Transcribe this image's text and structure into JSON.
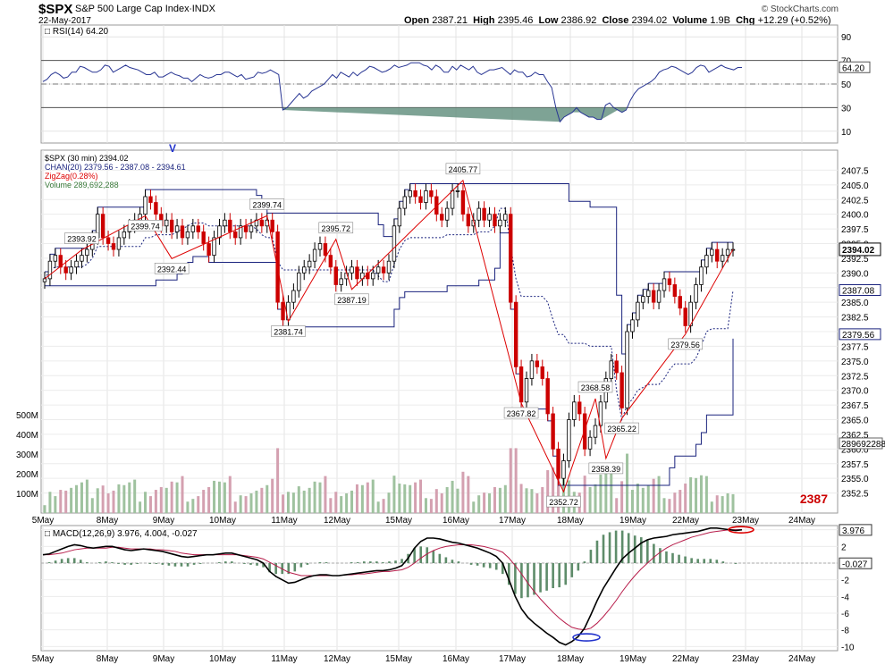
{
  "header": {
    "symbol": "$SPX",
    "name": "S&P 500 Large Cap Index",
    "exchange": "INDX",
    "date": "22-May-2017",
    "credit": "© StockCharts.com",
    "ohlc": [
      {
        "label": "Open",
        "value": "2387.21"
      },
      {
        "label": "High",
        "value": "2395.46"
      },
      {
        "label": "Low",
        "value": "2386.92"
      },
      {
        "label": "Close",
        "value": "2394.02"
      },
      {
        "label": "Volume",
        "value": "1.9B"
      },
      {
        "label": "Chg",
        "value": "+12.29 (+0.52%)"
      }
    ]
  },
  "colors": {
    "up": "#000000",
    "down": "#cc0000",
    "channel": "#1a237e",
    "zigzag": "#dd0000",
    "rsi": "#283593",
    "macd": "#000000",
    "signal": "#b71c4a",
    "hist": "#5e8c6a",
    "vol_up": "#9fc29f",
    "vol_down": "#d4a0b0",
    "marker": "#2233cc"
  },
  "chart_data": [
    {
      "panel": "rsi",
      "type": "line",
      "label": "RSI(14) 64.20",
      "ylim": [
        0,
        100
      ],
      "ticks": [
        10,
        30,
        50,
        70,
        90
      ],
      "overbought": 70,
      "oversold": 30,
      "midline": 50,
      "last_label": "64.20",
      "values": [
        52,
        54,
        58,
        60,
        58,
        55,
        56,
        60,
        60,
        65,
        64,
        62,
        60,
        60,
        62,
        66,
        65,
        60,
        62,
        64,
        66,
        64,
        63,
        62,
        60,
        58,
        58,
        60,
        56,
        56,
        58,
        60,
        58,
        57,
        55,
        55,
        52,
        55,
        58,
        56,
        55,
        56,
        58,
        58,
        60,
        60,
        58,
        56,
        58,
        54,
        55,
        56,
        60,
        59,
        60,
        62,
        60,
        58,
        28,
        30,
        34,
        38,
        42,
        38,
        40,
        44,
        46,
        48,
        50,
        54,
        58,
        55,
        60,
        58,
        56,
        60,
        57,
        60,
        62,
        65,
        64,
        62,
        60,
        61,
        63,
        66,
        64,
        65,
        66,
        68,
        68,
        68,
        66,
        65,
        62,
        66,
        64,
        60,
        60,
        65,
        62,
        66,
        64,
        62,
        65,
        60,
        58,
        60,
        62,
        62,
        63,
        64,
        61,
        58,
        62,
        60,
        60,
        56,
        57,
        60,
        58,
        58,
        52,
        47,
        30,
        18,
        22,
        24,
        26,
        30,
        26,
        24,
        22,
        22,
        20,
        20,
        32,
        34,
        30,
        28,
        26,
        28,
        36,
        42,
        46,
        48,
        50,
        52,
        55,
        60,
        62,
        63,
        65,
        64,
        62,
        60,
        58,
        60,
        64,
        66,
        65,
        60,
        62,
        64,
        66,
        64,
        63,
        62,
        64,
        64
      ]
    },
    {
      "panel": "price",
      "type": "candlestick",
      "title": "$SPX (30 min) 2394.02",
      "legend": [
        "$SPX (30 min) 2394.02",
        "CHAN(20) 2379.56 - 2387.08 - 2394.61",
        "ZigZag(0.28%)",
        "Volume 289,692,288"
      ],
      "ylim": [
        2350,
        2410
      ],
      "ticks": [
        2352.5,
        2355,
        2357.5,
        2360,
        2362.5,
        2365,
        2367.5,
        2370,
        2372.5,
        2375,
        2377.5,
        2380,
        2382.5,
        2385,
        2387.5,
        2390,
        2392.5,
        2395,
        2397.5,
        2400,
        2402.5,
        2405,
        2407.5
      ],
      "last_price": "2394.02",
      "channel_labels": [
        "2387.08",
        "2379.56"
      ],
      "overlay_text": "2387",
      "closes": [
        2389,
        2392,
        2393,
        2391,
        2390,
        2391,
        2392,
        2393,
        2394,
        2396,
        2400,
        2396,
        2395,
        2394,
        2396,
        2397,
        2398,
        2399,
        2400,
        2403,
        2402,
        2400,
        2398,
        2399,
        2397,
        2398,
        2396,
        2397,
        2398,
        2397,
        2395,
        2393,
        2396,
        2398,
        2399,
        2397,
        2396,
        2398,
        2397,
        2398,
        2399,
        2398,
        2399,
        2397,
        2385,
        2382,
        2385,
        2387,
        2390,
        2391,
        2392,
        2394,
        2395,
        2393,
        2391,
        2388,
        2389,
        2390,
        2391,
        2389,
        2390,
        2389,
        2390,
        2391,
        2390,
        2392,
        2398,
        2401,
        2403,
        2404,
        2403,
        2402,
        2404,
        2403,
        2400,
        2399,
        2401,
        2404,
        2404,
        2400,
        2398,
        2399,
        2401,
        2399,
        2400,
        2398,
        2399,
        2400,
        2385,
        2374,
        2368,
        2372,
        2375,
        2374,
        2372,
        2366,
        2360,
        2355,
        2358,
        2365,
        2368,
        2366,
        2360,
        2362,
        2364,
        2368,
        2372,
        2375,
        2373,
        2367,
        2380,
        2382,
        2385,
        2386,
        2387,
        2385,
        2387,
        2389,
        2388,
        2386,
        2384,
        2381,
        2385,
        2388,
        2391,
        2393,
        2394,
        2392,
        2393,
        2394,
        2394
      ],
      "x_labels": [
        "5May",
        "8May",
        "9May",
        "10May",
        "11May",
        "12May",
        "15May",
        "16May",
        "17May",
        "18May",
        "19May",
        "22May",
        "23May",
        "24May"
      ],
      "annotations": [
        {
          "text": "2393.92",
          "index": 7
        },
        {
          "text": "2399.74",
          "index": 19
        },
        {
          "text": "2392.44",
          "index": 24
        },
        {
          "text": "2399.74",
          "index": 42
        },
        {
          "text": "2381.74",
          "index": 46
        },
        {
          "text": "2395.72",
          "index": 55
        },
        {
          "text": "2387.19",
          "index": 58
        },
        {
          "text": "2405.77",
          "index": 79
        },
        {
          "text": "2367.82",
          "index": 90
        },
        {
          "text": "2368.58",
          "index": 104
        },
        {
          "text": "2358.39",
          "index": 106
        },
        {
          "text": "2352.72",
          "index": 98
        },
        {
          "text": "2365.22",
          "index": 109
        },
        {
          "text": "2379.56",
          "index": 121
        }
      ],
      "volume_ticks": [
        "100M",
        "200M",
        "300M",
        "400M",
        "500M"
      ],
      "volume_last": "289692288",
      "marker_v": "V"
    },
    {
      "panel": "macd",
      "type": "line",
      "label": "MACD(12,26,9) 3.976, 4.004, -0.027",
      "ylim": [
        -10.5,
        4.5
      ],
      "ticks": [
        4,
        2,
        0,
        -2,
        -4,
        -6,
        -8,
        -10
      ],
      "last_values": [
        "3.976",
        "-0.027"
      ],
      "x_labels": [
        "5May",
        "8May",
        "9May",
        "10May",
        "11May",
        "12May",
        "15May",
        "16May",
        "17May",
        "18May",
        "19May",
        "22May",
        "23May",
        "24May"
      ],
      "macd": [
        1.0,
        1.1,
        1.4,
        1.7,
        2.0,
        2.2,
        2.1,
        1.9,
        1.8,
        1.9,
        2.0,
        2.0,
        1.8,
        1.6,
        1.5,
        1.6,
        1.7,
        1.6,
        1.5,
        1.4,
        1.2,
        1.0,
        0.8,
        0.7,
        0.8,
        0.9,
        1.0,
        1.0,
        1.1,
        1.2,
        1.2,
        1.0,
        0.8,
        0.6,
        0.4,
        0.0,
        -1.0,
        -1.6,
        -2.0,
        -2.4,
        -2.3,
        -2.0,
        -1.7,
        -1.5,
        -1.4,
        -1.4,
        -1.5,
        -1.5,
        -1.4,
        -1.3,
        -1.2,
        -1.1,
        -1.0,
        -0.9,
        -0.9,
        -0.8,
        -0.6,
        -0.3,
        0.6,
        1.8,
        2.6,
        3.0,
        3.0,
        2.9,
        2.7,
        2.5,
        2.4,
        2.2,
        2.0,
        1.8,
        1.5,
        1.2,
        0.8,
        0.0,
        -2.0,
        -4.0,
        -5.5,
        -6.5,
        -7.2,
        -7.8,
        -8.4,
        -8.9,
        -9.5,
        -9.8,
        -9.4,
        -8.8,
        -7.8,
        -6.2,
        -4.5,
        -3.0,
        -1.8,
        -0.6,
        0.5,
        1.2,
        1.8,
        2.4,
        2.8,
        3.0,
        3.1,
        3.2,
        3.4,
        3.5,
        3.6,
        3.7,
        3.8,
        4.0,
        4.2,
        4.2,
        4.1,
        4.0,
        3.9,
        4.0
      ],
      "signal": [
        1.0,
        1.0,
        1.1,
        1.2,
        1.4,
        1.6,
        1.7,
        1.8,
        1.8,
        1.8,
        1.8,
        1.9,
        1.9,
        1.8,
        1.7,
        1.7,
        1.7,
        1.7,
        1.6,
        1.6,
        1.5,
        1.4,
        1.2,
        1.1,
        1.0,
        1.0,
        1.0,
        1.0,
        1.0,
        1.0,
        1.0,
        1.0,
        0.9,
        0.8,
        0.7,
        0.5,
        0.1,
        -0.3,
        -0.7,
        -1.1,
        -1.3,
        -1.5,
        -1.5,
        -1.5,
        -1.5,
        -1.5,
        -1.5,
        -1.5,
        -1.4,
        -1.4,
        -1.3,
        -1.3,
        -1.2,
        -1.1,
        -1.0,
        -1.0,
        -0.9,
        -0.8,
        -0.5,
        0.0,
        0.6,
        1.1,
        1.5,
        1.8,
        2.0,
        2.1,
        2.2,
        2.2,
        2.2,
        2.1,
        2.0,
        1.8,
        1.6,
        1.3,
        0.6,
        -0.3,
        -1.3,
        -2.4,
        -3.4,
        -4.3,
        -5.1,
        -5.9,
        -6.6,
        -7.2,
        -7.7,
        -7.9,
        -8.0,
        -7.8,
        -7.2,
        -6.4,
        -5.5,
        -4.5,
        -3.4,
        -2.4,
        -1.5,
        -0.7,
        0.0,
        0.7,
        1.3,
        1.8,
        2.2,
        2.5,
        2.8,
        3.1,
        3.3,
        3.5,
        3.7,
        3.8,
        3.9,
        4.0,
        4.0,
        4.0
      ]
    }
  ]
}
